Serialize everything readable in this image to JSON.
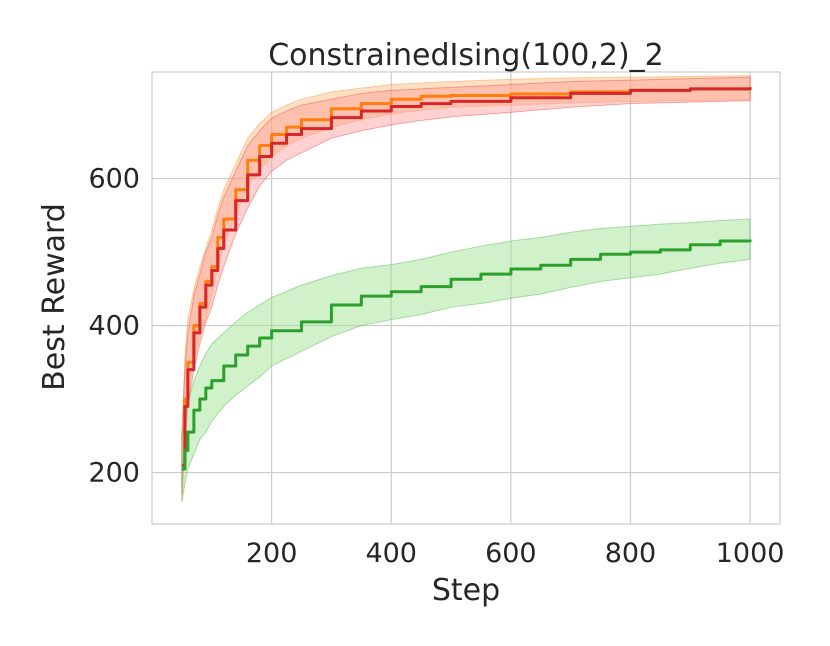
{
  "chart_data": {
    "type": "line",
    "title": "ConstrainedIsing(100,2)_2",
    "xlabel": "Step",
    "ylabel": "Best Reward",
    "xlim": [
      0,
      1050
    ],
    "ylim": [
      130,
      745
    ],
    "xticks": [
      200,
      400,
      600,
      800,
      1000
    ],
    "yticks": [
      200,
      400,
      600
    ],
    "grid": true,
    "legend": "none",
    "series": [
      {
        "color": "#ff7f0e",
        "band_color": "#ffbb78",
        "x": [
          50,
          55,
          60,
          70,
          80,
          90,
          100,
          110,
          120,
          140,
          160,
          180,
          200,
          225,
          250,
          300,
          350,
          400,
          450,
          500,
          600,
          700,
          800,
          900,
          1000
        ],
        "mean": [
          205,
          300,
          350,
          400,
          430,
          460,
          480,
          520,
          545,
          585,
          625,
          645,
          660,
          670,
          680,
          695,
          702,
          708,
          712,
          713,
          715,
          718,
          720,
          722,
          725
        ],
        "lower": [
          160,
          240,
          300,
          355,
          385,
          410,
          440,
          480,
          510,
          550,
          590,
          612,
          630,
          645,
          655,
          670,
          680,
          688,
          693,
          697,
          700,
          703,
          705,
          706,
          707
        ],
        "upper": [
          250,
          360,
          410,
          450,
          480,
          505,
          530,
          560,
          585,
          620,
          655,
          675,
          690,
          700,
          708,
          718,
          723,
          728,
          730,
          732,
          735,
          737,
          738,
          739,
          740
        ]
      },
      {
        "color": "#d62728",
        "band_color": "#ff9896",
        "x": [
          50,
          55,
          60,
          70,
          80,
          90,
          100,
          110,
          120,
          140,
          160,
          180,
          200,
          225,
          250,
          300,
          350,
          400,
          450,
          500,
          600,
          700,
          800,
          900,
          1000
        ],
        "mean": [
          210,
          290,
          340,
          390,
          425,
          455,
          475,
          505,
          530,
          570,
          605,
          630,
          648,
          660,
          668,
          683,
          692,
          698,
          702,
          705,
          710,
          716,
          720,
          722,
          724
        ],
        "lower": [
          170,
          240,
          290,
          340,
          375,
          405,
          425,
          455,
          480,
          525,
          560,
          590,
          610,
          625,
          635,
          655,
          665,
          673,
          679,
          684,
          690,
          697,
          702,
          704,
          706
        ],
        "upper": [
          250,
          340,
          390,
          440,
          470,
          500,
          520,
          550,
          575,
          610,
          645,
          665,
          682,
          692,
          700,
          708,
          716,
          720,
          722,
          724,
          728,
          732,
          734,
          736,
          738
        ]
      },
      {
        "color": "#2ca02c",
        "band_color": "#98df8a",
        "x": [
          50,
          55,
          60,
          70,
          80,
          90,
          100,
          120,
          140,
          160,
          180,
          200,
          250,
          300,
          350,
          400,
          450,
          500,
          550,
          600,
          650,
          700,
          750,
          800,
          850,
          900,
          950,
          1000
        ],
        "mean": [
          205,
          230,
          255,
          285,
          300,
          315,
          325,
          345,
          360,
          372,
          383,
          393,
          405,
          428,
          440,
          446,
          453,
          463,
          470,
          477,
          482,
          490,
          497,
          500,
          503,
          510,
          515,
          517
        ],
        "lower": [
          160,
          185,
          205,
          225,
          245,
          255,
          270,
          290,
          305,
          318,
          330,
          345,
          365,
          385,
          400,
          408,
          415,
          425,
          430,
          437,
          443,
          452,
          460,
          465,
          470,
          478,
          485,
          490
        ],
        "upper": [
          250,
          270,
          295,
          325,
          345,
          362,
          375,
          390,
          405,
          418,
          428,
          438,
          455,
          468,
          478,
          483,
          490,
          500,
          508,
          515,
          520,
          527,
          532,
          535,
          538,
          540,
          543,
          545
        ]
      }
    ]
  }
}
